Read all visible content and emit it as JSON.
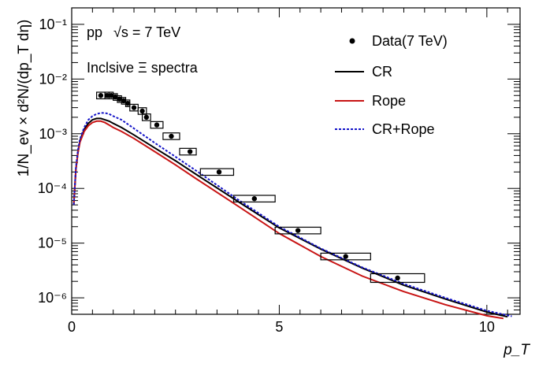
{
  "chart_data": {
    "type": "line",
    "title": "",
    "annotations": [
      "pp",
      "√s = 7 TeV",
      "Inclsive Ξ spectra"
    ],
    "xlabel": "p_T",
    "ylabel": "1/N_ev × d²N/(dp_T dη)",
    "xlim": [
      0,
      10.8
    ],
    "ylim": [
      5e-07,
      0.2
    ],
    "yscale": "log",
    "x_ticks": [
      "0",
      "5",
      "10"
    ],
    "y_ticks": [
      "10⁻⁶",
      "10⁻⁵",
      "10⁻⁴",
      "10⁻³",
      "10⁻²",
      "10⁻¹"
    ],
    "legend": {
      "placement": "top-right",
      "entries": [
        {
          "label": "Data(7 TeV)",
          "style": "marker"
        },
        {
          "label": "CR",
          "style": "solid",
          "color": "#000000"
        },
        {
          "label": "Rope",
          "style": "solid",
          "color": "#c81414"
        },
        {
          "label": "CR+Rope",
          "style": "dotted",
          "color": "#1414c8"
        }
      ]
    },
    "data_points": {
      "name": "Data(7 TeV)",
      "points": [
        {
          "x": 0.7,
          "xlow": 0.6,
          "xhigh": 0.8,
          "y": 0.005,
          "sys": 0.15
        },
        {
          "x": 0.85,
          "xlow": 0.8,
          "xhigh": 0.9,
          "y": 0.005,
          "sys": 0.15
        },
        {
          "x": 0.95,
          "xlow": 0.9,
          "xhigh": 1.0,
          "y": 0.005,
          "sys": 0.15
        },
        {
          "x": 1.05,
          "xlow": 1.0,
          "xhigh": 1.1,
          "y": 0.0047,
          "sys": 0.15
        },
        {
          "x": 1.15,
          "xlow": 1.1,
          "xhigh": 1.2,
          "y": 0.0043,
          "sys": 0.15
        },
        {
          "x": 1.25,
          "xlow": 1.2,
          "xhigh": 1.3,
          "y": 0.004,
          "sys": 0.15
        },
        {
          "x": 1.35,
          "xlow": 1.3,
          "xhigh": 1.4,
          "y": 0.0036,
          "sys": 0.15
        },
        {
          "x": 1.5,
          "xlow": 1.4,
          "xhigh": 1.6,
          "y": 0.003,
          "sys": 0.15
        },
        {
          "x": 1.7,
          "xlow": 1.6,
          "xhigh": 1.8,
          "y": 0.0026,
          "sys": 0.15
        },
        {
          "x": 1.8,
          "xlow": 1.7,
          "xhigh": 1.9,
          "y": 0.002,
          "sys": 0.15
        },
        {
          "x": 2.05,
          "xlow": 1.9,
          "xhigh": 2.2,
          "y": 0.00145,
          "sys": 0.15
        },
        {
          "x": 2.4,
          "xlow": 2.2,
          "xhigh": 2.6,
          "y": 0.0009,
          "sys": 0.15
        },
        {
          "x": 2.85,
          "xlow": 2.6,
          "xhigh": 3.0,
          "y": 0.00047,
          "sys": 0.15
        },
        {
          "x": 3.55,
          "xlow": 3.1,
          "xhigh": 3.9,
          "y": 0.0002,
          "sys": 0.15
        },
        {
          "x": 4.4,
          "xlow": 3.9,
          "xhigh": 4.9,
          "y": 6.5e-05,
          "sys": 0.15
        },
        {
          "x": 5.45,
          "xlow": 4.9,
          "xhigh": 6.0,
          "y": 1.7e-05,
          "sys": 0.15
        },
        {
          "x": 6.6,
          "xlow": 6.0,
          "xhigh": 7.2,
          "y": 5.7e-06,
          "sys": 0.15
        },
        {
          "x": 7.85,
          "xlow": 7.2,
          "xhigh": 8.5,
          "y": 2.3e-06,
          "sys": 0.2
        }
      ]
    },
    "series": [
      {
        "name": "CR",
        "x": [
          0.05,
          0.1,
          0.15,
          0.2,
          0.3,
          0.4,
          0.5,
          0.6,
          0.7,
          0.8,
          0.9,
          1.0,
          1.2,
          1.5,
          2.0,
          2.5,
          3.0,
          4.0,
          5.0,
          6.0,
          7.0,
          8.0,
          9.0,
          10.0,
          10.5
        ],
        "y": [
          5e-05,
          0.00022,
          0.00045,
          0.00075,
          0.0012,
          0.00155,
          0.0018,
          0.0019,
          0.0019,
          0.0018,
          0.0017,
          0.00155,
          0.0013,
          0.00095,
          0.00055,
          0.00032,
          0.00018,
          5.8e-05,
          1.9e-05,
          7.8e-06,
          3.5e-06,
          1.7e-06,
          9.5e-07,
          5.5e-07,
          4.5e-07
        ]
      },
      {
        "name": "Rope",
        "x": [
          0.05,
          0.1,
          0.15,
          0.2,
          0.3,
          0.4,
          0.5,
          0.6,
          0.7,
          0.8,
          0.9,
          1.0,
          1.2,
          1.5,
          2.0,
          2.5,
          3.0,
          4.0,
          5.0,
          6.0,
          7.0,
          8.0,
          9.0,
          10.0,
          10.4
        ],
        "y": [
          5e-05,
          0.00022,
          0.00045,
          0.0007,
          0.0011,
          0.0014,
          0.0016,
          0.0017,
          0.0017,
          0.0016,
          0.00145,
          0.0013,
          0.0011,
          0.00082,
          0.00047,
          0.00027,
          0.00015,
          4.8e-05,
          1.5e-05,
          5.7e-06,
          2.5e-06,
          1.3e-06,
          7.5e-07,
          4.7e-07,
          4.2e-07
        ]
      },
      {
        "name": "CR+Rope",
        "x": [
          0.05,
          0.1,
          0.15,
          0.2,
          0.3,
          0.4,
          0.5,
          0.6,
          0.7,
          0.8,
          0.9,
          1.0,
          1.2,
          1.5,
          2.0,
          2.5,
          3.0,
          4.0,
          5.0,
          6.0,
          7.0,
          8.0,
          9.0,
          10.0,
          10.6
        ],
        "y": [
          5e-05,
          0.00024,
          0.0005,
          0.0008,
          0.0013,
          0.0018,
          0.0021,
          0.0023,
          0.0024,
          0.0024,
          0.0023,
          0.0021,
          0.0018,
          0.00125,
          0.00068,
          0.00038,
          0.00021,
          6.3e-05,
          2e-05,
          8e-06,
          3.6e-06,
          1.8e-06,
          1e-06,
          5.8e-07,
          4.6e-07
        ]
      }
    ],
    "grid": false
  }
}
